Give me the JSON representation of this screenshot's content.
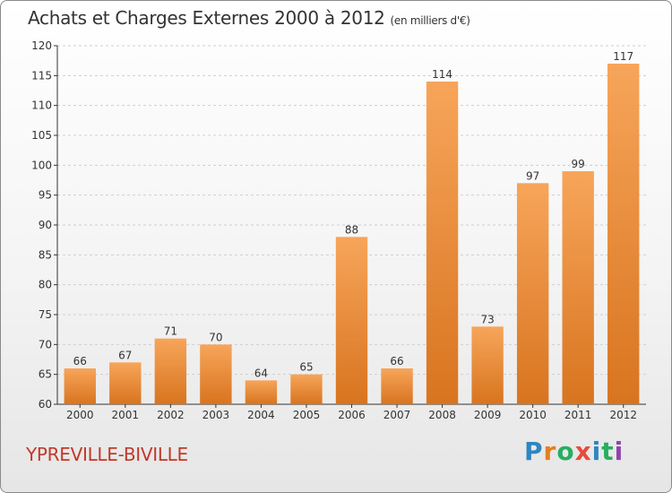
{
  "header": {
    "title": "Achats et Charges Externes 2000 à 2012",
    "subtitle": "(en milliers d'€)"
  },
  "footer": {
    "place": "YPREVILLE-BIVILLE",
    "brand": [
      "P",
      "r",
      "o",
      "x",
      "i",
      "t",
      "i"
    ],
    "brand_colors": [
      "#2e86c1",
      "#e67e22",
      "#27ae60",
      "#e74c3c",
      "#2e86c1",
      "#27ae60",
      "#8e44ad"
    ]
  },
  "colors": {
    "bar_light": "#f7a55a",
    "bar_dark": "#d8741f",
    "grid": "#cfcfcf",
    "axis": "#333333",
    "place": "#c0392b"
  },
  "chart_data": {
    "type": "bar",
    "title": "Achats et Charges Externes 2000 à 2012",
    "subtitle": "(en milliers d'€)",
    "categories": [
      "2000",
      "2001",
      "2002",
      "2003",
      "2004",
      "2005",
      "2006",
      "2007",
      "2008",
      "2009",
      "2010",
      "2011",
      "2012"
    ],
    "values": [
      66,
      67,
      71,
      70,
      64,
      65,
      88,
      66,
      114,
      73,
      97,
      99,
      117
    ],
    "ylim": [
      60,
      120
    ],
    "yticks": [
      60,
      65,
      70,
      75,
      80,
      85,
      90,
      95,
      100,
      105,
      110,
      115,
      120
    ],
    "grid": true,
    "xlabel": "",
    "ylabel": ""
  }
}
